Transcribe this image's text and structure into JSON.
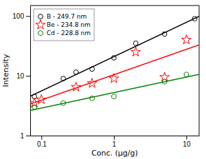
{
  "chart_data": {
    "type": "scatter",
    "xlabel": "Conc. (μg/g)",
    "ylabel": "Intensity",
    "log": true,
    "grid": false,
    "legend": "upper left",
    "xlim": [
      0.07,
      15
    ],
    "ylim": [
      1,
      150
    ],
    "xticks": [
      0.1,
      1,
      10
    ],
    "yticks": [
      1,
      10,
      100
    ],
    "series": [
      {
        "name": "B - 249.7 nm",
        "type": "scatter",
        "color": "black",
        "marker": "circle",
        "x": [
          0.08,
          0.2,
          0.3,
          0.5,
          1.0,
          2.0,
          5.0,
          13.0
        ],
        "values": [
          4.5,
          9.0,
          11.5,
          13.0,
          20.0,
          35.0,
          50.0,
          90.0
        ]
      },
      {
        "name": "Be - 234.8 nm",
        "type": "scatter",
        "color": "red",
        "marker": "star",
        "x": [
          0.08,
          0.1,
          0.3,
          0.5,
          1.0,
          2.0,
          5.0,
          10.0
        ],
        "values": [
          3.5,
          4.0,
          6.5,
          7.5,
          9.0,
          25.0,
          9.5,
          40.0
        ]
      },
      {
        "name": "Cd - 228.8 nm",
        "type": "scatter",
        "color": "green",
        "marker": "hexagon",
        "x": [
          0.08,
          0.2,
          0.5,
          1.0,
          5.0,
          10.0
        ],
        "values": [
          3.0,
          3.5,
          4.2,
          4.5,
          8.0,
          10.5
        ]
      },
      {
        "type": "line",
        "color": "black",
        "line_style": "solid",
        "x": [
          0.07,
          15
        ],
        "values": [
          4.556,
          99.14
        ]
      },
      {
        "type": "line",
        "color": "red",
        "line_style": "solid",
        "x": [
          0.07,
          15
        ],
        "values": [
          3.388,
          32.97
        ]
      },
      {
        "type": "line",
        "color": "green",
        "line_style": "solid",
        "x": [
          0.07,
          15
        ],
        "values": [
          2.639,
          10.61
        ]
      }
    ]
  }
}
